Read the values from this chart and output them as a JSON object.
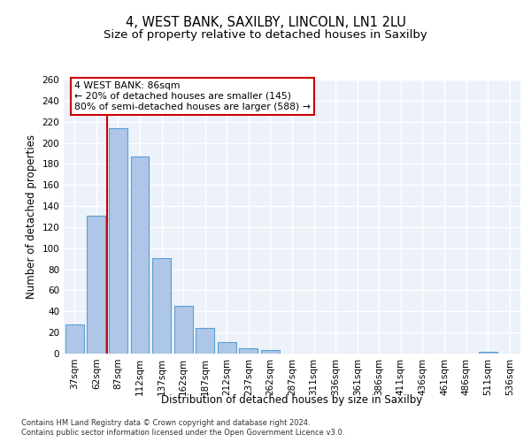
{
  "title1": "4, WEST BANK, SAXILBY, LINCOLN, LN1 2LU",
  "title2": "Size of property relative to detached houses in Saxilby",
  "xlabel": "Distribution of detached houses by size in Saxilby",
  "ylabel": "Number of detached properties",
  "categories": [
    "37sqm",
    "62sqm",
    "87sqm",
    "112sqm",
    "137sqm",
    "162sqm",
    "187sqm",
    "212sqm",
    "237sqm",
    "262sqm",
    "287sqm",
    "311sqm",
    "336sqm",
    "361sqm",
    "386sqm",
    "411sqm",
    "436sqm",
    "461sqm",
    "486sqm",
    "511sqm",
    "536sqm"
  ],
  "values": [
    28,
    131,
    214,
    187,
    91,
    45,
    24,
    11,
    5,
    3,
    0,
    0,
    0,
    0,
    0,
    0,
    0,
    0,
    0,
    2,
    0
  ],
  "bar_color": "#aec6e8",
  "bar_edge_color": "#5a9fd4",
  "annotation_text": "4 WEST BANK: 86sqm\n← 20% of detached houses are smaller (145)\n80% of semi-detached houses are larger (588) →",
  "annotation_box_color": "#ffffff",
  "annotation_box_edge": "#cc0000",
  "footer_text": "Contains HM Land Registry data © Crown copyright and database right 2024.\nContains public sector information licensed under the Open Government Licence v3.0.",
  "ylim": [
    0,
    260
  ],
  "yticks": [
    0,
    20,
    40,
    60,
    80,
    100,
    120,
    140,
    160,
    180,
    200,
    220,
    240,
    260
  ],
  "background_color": "#edf2fa",
  "grid_color": "#ffffff",
  "title_fontsize": 10.5,
  "subtitle_fontsize": 9.5,
  "tick_fontsize": 7.5,
  "ylabel_fontsize": 8.5,
  "xlabel_fontsize": 8.5,
  "annotation_fontsize": 7.8,
  "footer_fontsize": 6.0,
  "red_line_x": 1.5
}
